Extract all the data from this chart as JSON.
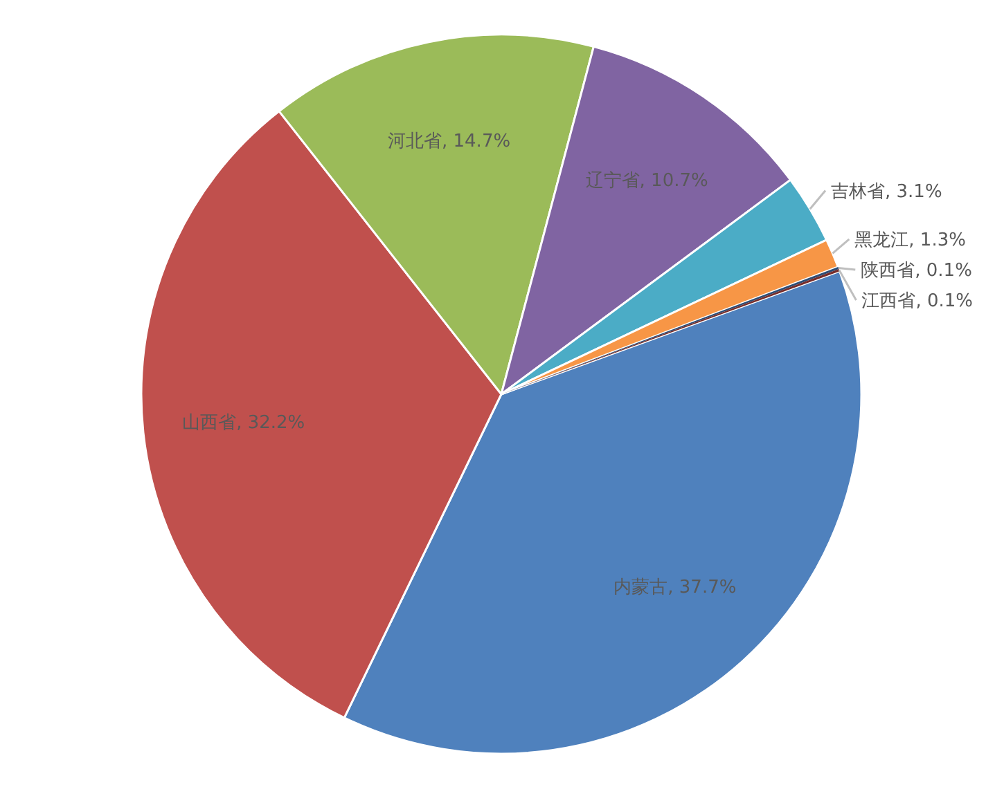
{
  "chart_data": {
    "type": "pie",
    "categories": [
      "内蒙古",
      "山西省",
      "河北省",
      "辽宁省",
      "吉林省",
      "黑龙江",
      "陕西省",
      "江西省"
    ],
    "values": [
      37.7,
      32.2,
      14.7,
      10.7,
      3.1,
      1.3,
      0.1,
      0.1
    ],
    "colors": [
      "#4f81bd",
      "#c0504d",
      "#9bbb59",
      "#8064a2",
      "#4bacc6",
      "#f79646",
      "#2c4d75",
      "#772c2a"
    ],
    "value_labels": [
      "37.7%",
      "32.2%",
      "14.7%",
      "10.7%",
      "3.1%",
      "1.3%",
      "0.1%",
      "0.1%"
    ]
  }
}
